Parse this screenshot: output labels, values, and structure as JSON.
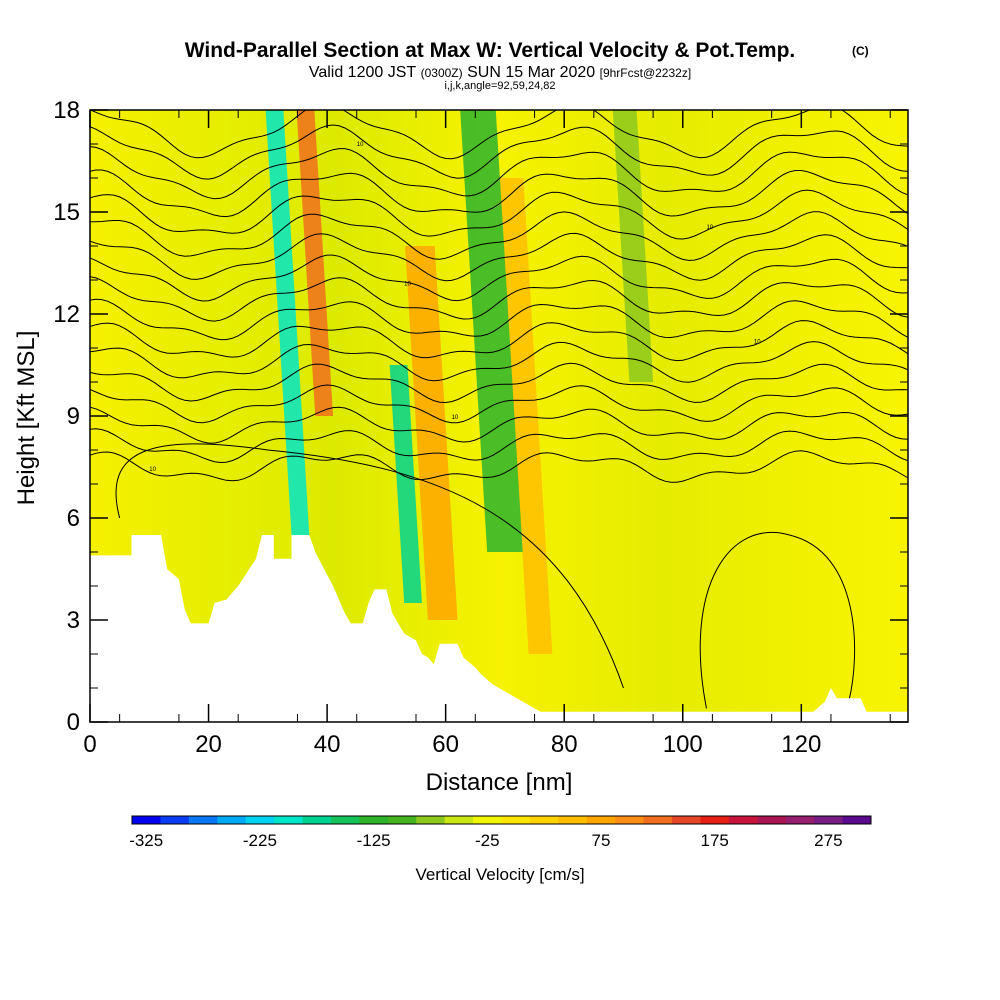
{
  "chart_data": {
    "type": "heatmap",
    "title": "Wind-Parallel Section at Max W: Vertical Velocity & Pot.Temp.",
    "title_suffix": "(C)",
    "subtitle_parts": [
      "Valid 1200 JST",
      "(0300Z)",
      "SUN 15 Mar 2020",
      "[9hrFcst@2232z]"
    ],
    "subtitle2": "i,j,k,angle=92,59,24,82",
    "xlabel": "Distance [nm]",
    "ylabel": "Height [Kft MSL]",
    "xlim": [
      0,
      138
    ],
    "ylim": [
      0,
      18
    ],
    "x_ticks": [
      0,
      20,
      40,
      60,
      80,
      100,
      120
    ],
    "y_ticks": [
      0,
      3,
      6,
      9,
      12,
      15,
      18
    ],
    "colorbar": {
      "label": "Vertical Velocity [cm/s]",
      "tick_labels": [
        "-325",
        "-225",
        "-125",
        "-25",
        "75",
        "175",
        "275"
      ],
      "colors": [
        "#0000f0",
        "#0a3cf5",
        "#0a78f5",
        "#00aaf5",
        "#00d2f0",
        "#00e6c8",
        "#00d291",
        "#14c35a",
        "#2db42d",
        "#46b41e",
        "#8cc81e",
        "#c8e614",
        "#f0f500",
        "#ffe600",
        "#ffd200",
        "#ffbe00",
        "#ffa500",
        "#ff8c14",
        "#f06e1e",
        "#e64628",
        "#e61e14",
        "#c8143c",
        "#aa1450",
        "#961e6e",
        "#781e82",
        "#5a0a8c"
      ]
    },
    "updraft_bands": [
      {
        "x0": 34,
        "x1": 37,
        "yTop": 18,
        "yBot": 5.5,
        "w": -180
      },
      {
        "x0": 53,
        "x1": 56,
        "yTop": 10.5,
        "yBot": 3.5,
        "w": -170
      },
      {
        "x0": 67,
        "x1": 73,
        "yTop": 18,
        "yBot": 5,
        "w": -110
      },
      {
        "x0": 91,
        "x1": 95,
        "yTop": 18,
        "yBot": 10,
        "w": -60
      }
    ],
    "downdraft_bands": [
      {
        "x0": 38,
        "x1": 41,
        "yTop": 18,
        "yBot": 9,
        "w": 140
      },
      {
        "x0": 57,
        "x1": 62,
        "yTop": 14,
        "yBot": 3,
        "w": 80
      },
      {
        "x0": 74,
        "x1": 78,
        "yTop": 16,
        "yBot": 2,
        "w": 70
      }
    ],
    "terrain": [
      [
        0,
        4.9
      ],
      [
        7,
        4.9
      ],
      [
        7,
        5.5
      ],
      [
        12,
        5.5
      ],
      [
        13,
        4.5
      ],
      [
        15,
        4.2
      ],
      [
        16,
        3.3
      ],
      [
        17,
        2.9
      ],
      [
        20,
        2.9
      ],
      [
        21,
        3.5
      ],
      [
        23,
        3.6
      ],
      [
        25,
        4
      ],
      [
        28,
        4.8
      ],
      [
        29,
        5.5
      ],
      [
        31,
        5.5
      ],
      [
        31,
        4.8
      ],
      [
        34,
        4.8
      ],
      [
        34,
        5.5
      ],
      [
        37,
        5.5
      ],
      [
        38,
        5
      ],
      [
        41,
        4
      ],
      [
        43,
        3.2
      ],
      [
        44,
        2.9
      ],
      [
        46,
        2.9
      ],
      [
        47,
        3.5
      ],
      [
        48,
        3.9
      ],
      [
        50,
        3.9
      ],
      [
        51,
        3.2
      ],
      [
        53,
        2.6
      ],
      [
        55,
        2.4
      ],
      [
        56,
        2
      ],
      [
        57,
        1.9
      ],
      [
        58,
        1.7
      ],
      [
        59,
        2.3
      ],
      [
        62,
        2.3
      ],
      [
        63,
        1.9
      ],
      [
        65,
        1.6
      ],
      [
        66,
        1.4
      ],
      [
        68,
        1.1
      ],
      [
        70,
        0.9
      ],
      [
        72,
        0.7
      ],
      [
        74,
        0.5
      ],
      [
        76,
        0.3
      ],
      [
        82,
        0.3
      ],
      [
        122,
        0.3
      ],
      [
        124,
        0.6
      ],
      [
        125,
        1
      ],
      [
        126,
        0.7
      ],
      [
        130,
        0.7
      ],
      [
        131,
        0.3
      ],
      [
        138,
        0.3
      ]
    ],
    "theta_contours_count": 17,
    "theta_label": "10"
  }
}
